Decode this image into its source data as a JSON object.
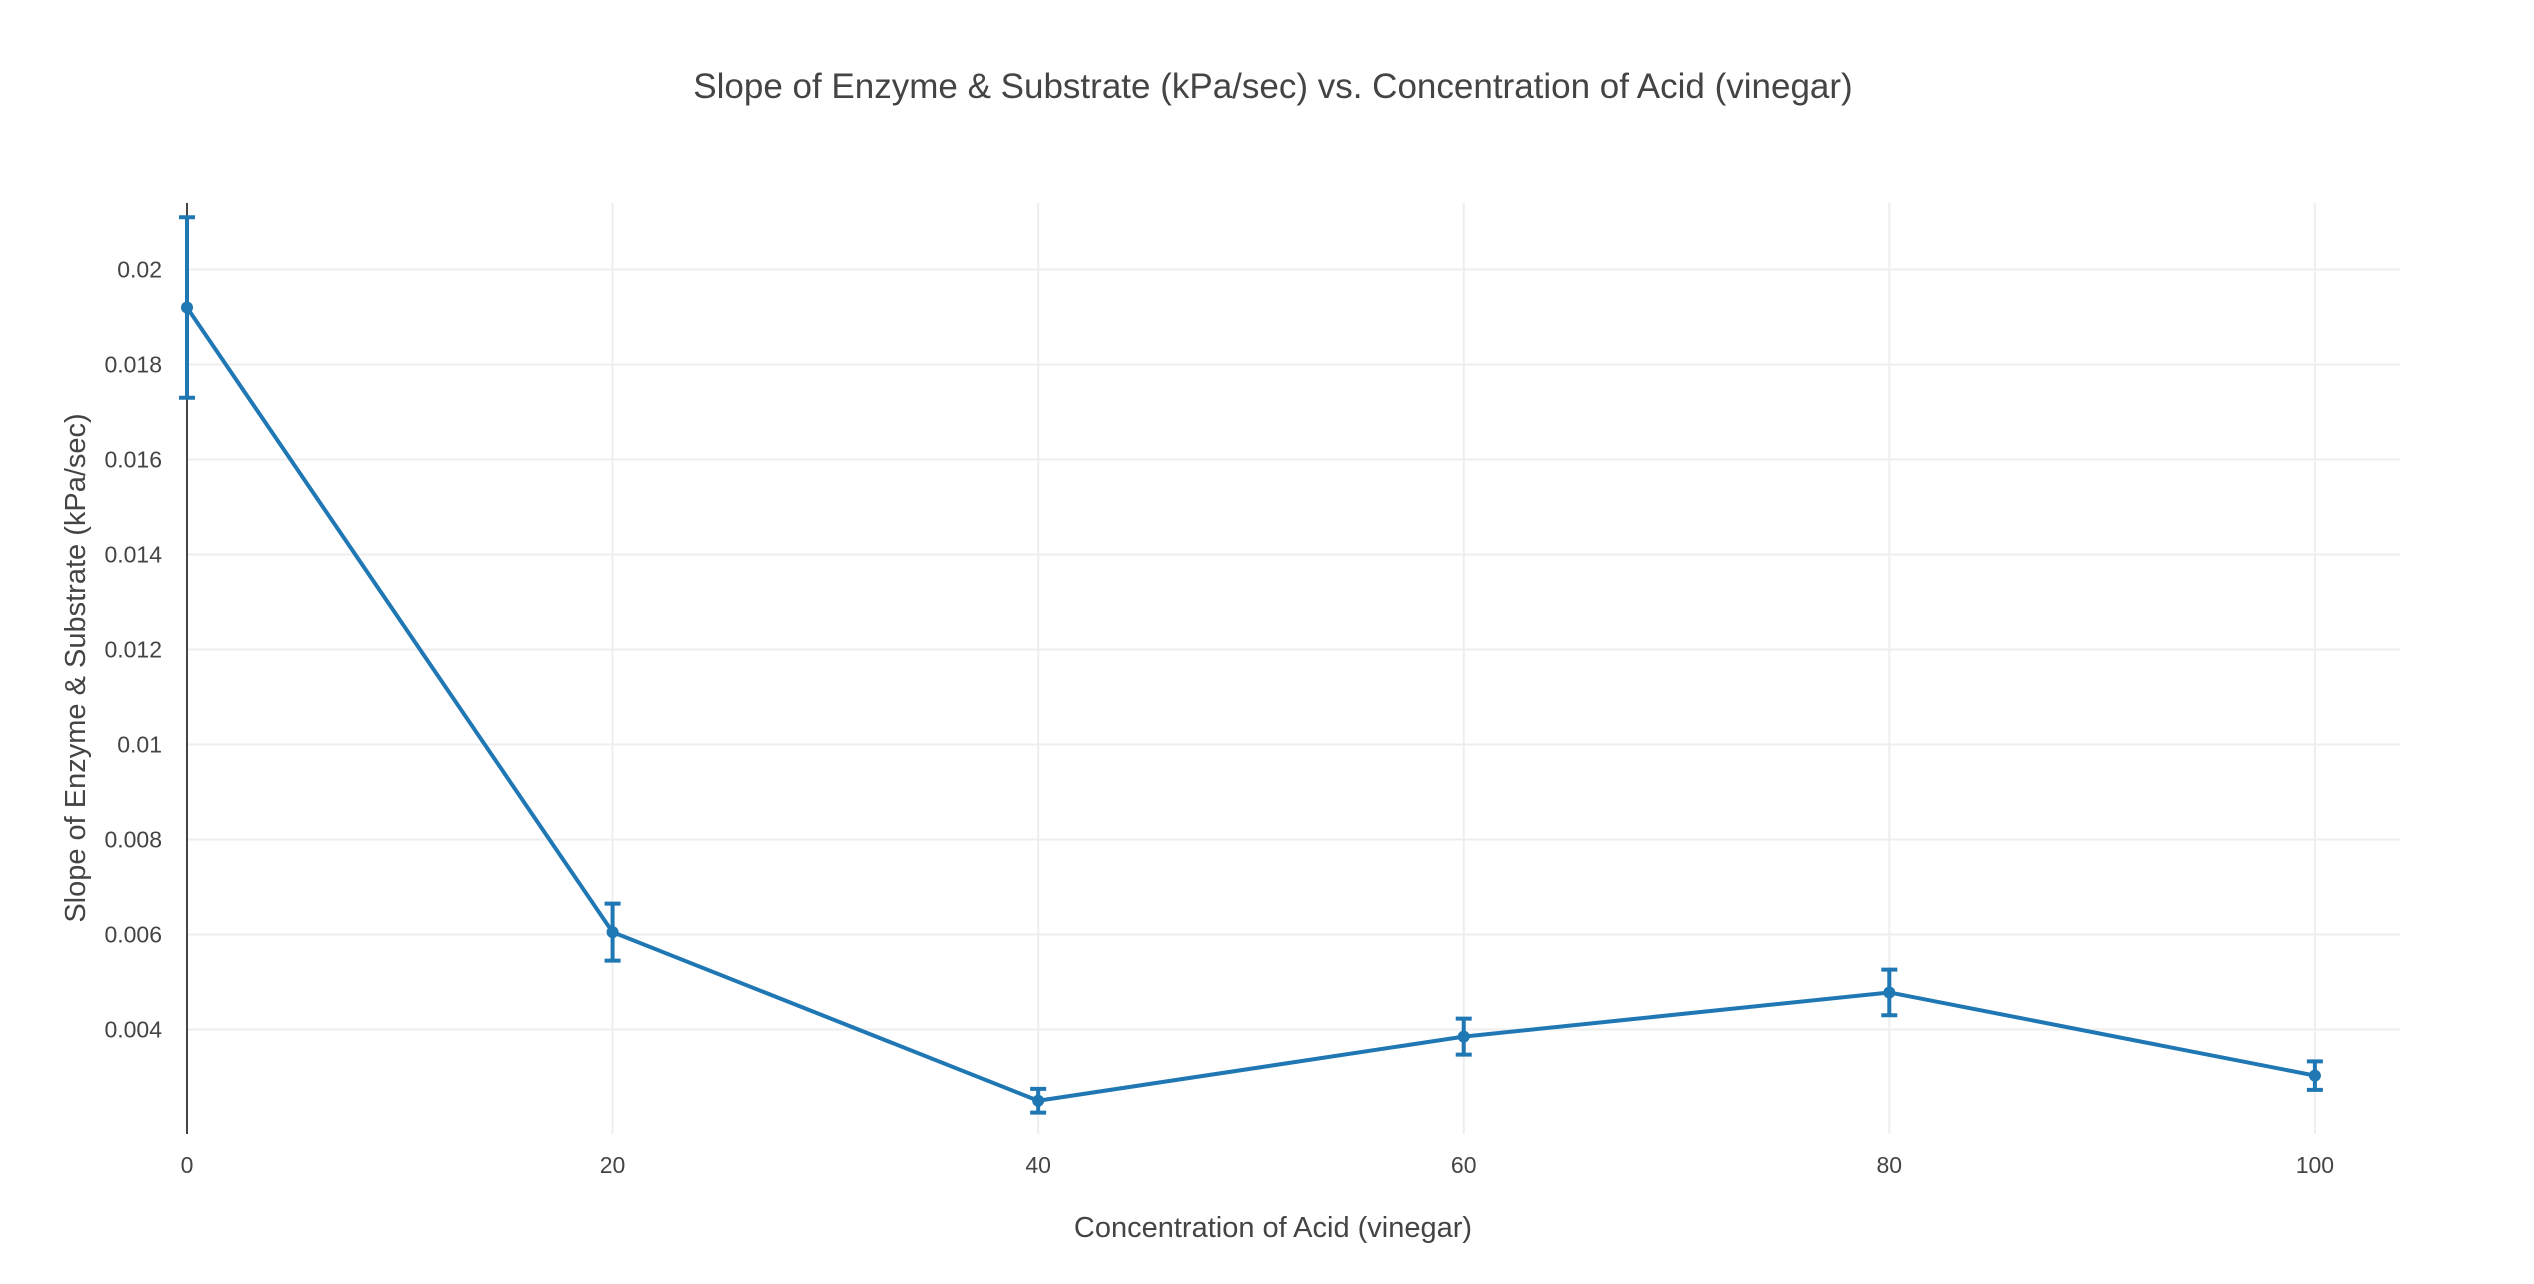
{
  "chart_data": {
    "type": "line",
    "title": "Slope of Enzyme & Substrate (kPa/sec) vs. Concentration of Acid (vinegar)",
    "xlabel": "Concentration of Acid (vinegar)",
    "ylabel": "Slope of Enzyme & Substrate (kPa/sec)",
    "xlim": [
      0,
      104
    ],
    "ylim": [
      0.0018,
      0.0214
    ],
    "x_ticks": [
      0,
      20,
      40,
      60,
      80,
      100
    ],
    "x_tick_labels": [
      "0",
      "20",
      "40",
      "60",
      "80",
      "100"
    ],
    "y_ticks": [
      0.004,
      0.006,
      0.008,
      0.01,
      0.012,
      0.014,
      0.016,
      0.018,
      0.02
    ],
    "y_tick_labels": [
      "0.004",
      "0.006",
      "0.008",
      "0.01",
      "0.012",
      "0.014",
      "0.016",
      "0.018",
      "0.02"
    ],
    "grid": true,
    "legend": false,
    "series": [
      {
        "x": [
          0,
          20,
          40,
          60,
          80,
          100
        ],
        "y": [
          0.0192,
          0.00605,
          0.0025,
          0.00385,
          0.00478,
          0.00303
        ],
        "error": [
          0.0019,
          0.0006,
          0.00025,
          0.00038,
          0.00048,
          0.0003
        ],
        "color": "#1f77b4"
      }
    ]
  }
}
